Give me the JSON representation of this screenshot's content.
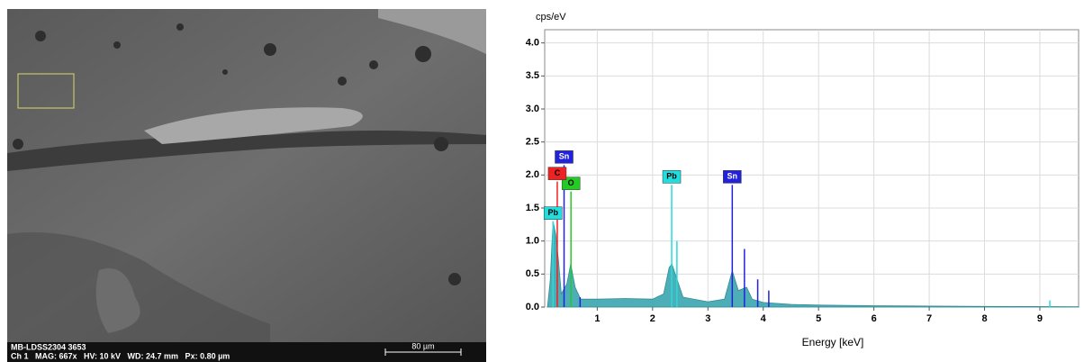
{
  "image": {
    "sample_id": "MB-LDSS2304 3653",
    "info": "Ch 1   MAG: 667x   HV: 10 kV   WD: 24.7 mm   Px: 0.80 µm",
    "scale_bar": "80 µm"
  },
  "chart_data": {
    "type": "area",
    "y_label": "cps/eV",
    "x_label": "Energy [keV]",
    "color": "#3aa6b0",
    "x": [
      0.1,
      0.15,
      0.2,
      0.25,
      0.3,
      0.35,
      0.45,
      0.52,
      0.6,
      0.7,
      1.0,
      1.5,
      2.0,
      2.2,
      2.3,
      2.35,
      2.45,
      2.55,
      3.0,
      3.3,
      3.44,
      3.55,
      3.7,
      3.8,
      4.0,
      4.5,
      5,
      6,
      7,
      8,
      9.7
    ],
    "values": [
      0,
      0.4,
      1.3,
      1.1,
      0.7,
      0.2,
      0.35,
      0.65,
      0.3,
      0.12,
      0.12,
      0.13,
      0.12,
      0.2,
      0.6,
      0.65,
      0.4,
      0.15,
      0.08,
      0.12,
      0.55,
      0.25,
      0.3,
      0.12,
      0.07,
      0.04,
      0.03,
      0.02,
      0.015,
      0.01,
      0.005
    ],
    "lines": [
      {
        "label": "Sn",
        "x": 0.4,
        "y": 2.15,
        "color": "#2222dd"
      },
      {
        "label": "O",
        "x": 0.525,
        "y": 1.75,
        "color": "#22cc22"
      },
      {
        "label": "C",
        "x": 0.277,
        "y": 1.9,
        "color": "#ee2222"
      },
      {
        "label": "Pb",
        "x": 0.2,
        "y": 1.3,
        "color": "#22dddd"
      },
      {
        "label": "Pb",
        "x": 2.345,
        "y": 1.85,
        "color": "#22dddd"
      },
      {
        "label": "Sn",
        "x": 3.44,
        "y": 1.85,
        "color": "#2222dd"
      }
    ],
    "minor_lines": [
      {
        "x": 2.44,
        "y": 1.0,
        "color": "#22dddd"
      },
      {
        "x": 3.66,
        "y": 0.88,
        "color": "#2222dd"
      },
      {
        "x": 3.9,
        "y": 0.42,
        "color": "#2222dd"
      },
      {
        "x": 4.1,
        "y": 0.25,
        "color": "#2222dd"
      },
      {
        "x": 0.69,
        "y": 0.15,
        "color": "#2222dd"
      },
      {
        "x": 9.18,
        "y": 0.1,
        "color": "#22dddd"
      }
    ],
    "xlim": [
      0.05,
      9.7
    ],
    "ylim": [
      0,
      4.2
    ],
    "xticks": [
      1,
      2,
      3,
      4,
      5,
      6,
      7,
      8,
      9
    ],
    "yticks": [
      {
        "value": 0,
        "label": "0.0"
      },
      0.5,
      {
        "value": 1,
        "label": "1.0"
      },
      1.5,
      {
        "value": 2,
        "label": "2.0"
      },
      2.5,
      {
        "value": 3,
        "label": "3.0"
      },
      3.5,
      {
        "value": 4,
        "label": "4.0"
      }
    ],
    "grid": true
  }
}
